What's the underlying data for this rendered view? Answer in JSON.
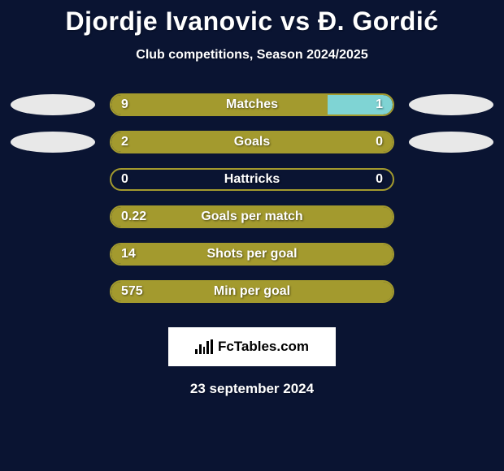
{
  "background_color": "#0a1432",
  "title": "Djordje Ivanovic vs Đ. Gordić",
  "subtitle": "Club competitions, Season 2024/2025",
  "title_color": "#ffffff",
  "subtitle_color": "#ffffff",
  "bar_track_width": 350,
  "bar_track_height": 28,
  "ellipse_left_color": "#e8e8e8",
  "ellipse_right_color": "#e8e8e8",
  "stats": [
    {
      "label": "Matches",
      "left_value": "9",
      "right_value": "1",
      "left_fill_pct": 77,
      "right_fill_pct": 23,
      "left_fill_color": "#a39a2e",
      "right_fill_color": "#7fd4d4",
      "border_color": "#a39a2e",
      "show_left_ellipse": true,
      "show_right_ellipse": true
    },
    {
      "label": "Goals",
      "left_value": "2",
      "right_value": "0",
      "left_fill_pct": 100,
      "right_fill_pct": 0,
      "left_fill_color": "#a39a2e",
      "right_fill_color": "#7fd4d4",
      "border_color": "#a39a2e",
      "show_left_ellipse": true,
      "show_right_ellipse": true
    },
    {
      "label": "Hattricks",
      "left_value": "0",
      "right_value": "0",
      "left_fill_pct": 0,
      "right_fill_pct": 0,
      "left_fill_color": "#a39a2e",
      "right_fill_color": "#7fd4d4",
      "border_color": "#a39a2e",
      "show_left_ellipse": false,
      "show_right_ellipse": false
    },
    {
      "label": "Goals per match",
      "left_value": "0.22",
      "right_value": "",
      "left_fill_pct": 100,
      "right_fill_pct": 0,
      "left_fill_color": "#a39a2e",
      "right_fill_color": "#7fd4d4",
      "border_color": "#a39a2e",
      "show_left_ellipse": false,
      "show_right_ellipse": false
    },
    {
      "label": "Shots per goal",
      "left_value": "14",
      "right_value": "",
      "left_fill_pct": 100,
      "right_fill_pct": 0,
      "left_fill_color": "#a39a2e",
      "right_fill_color": "#7fd4d4",
      "border_color": "#a39a2e",
      "show_left_ellipse": false,
      "show_right_ellipse": false
    },
    {
      "label": "Min per goal",
      "left_value": "575",
      "right_value": "",
      "left_fill_pct": 100,
      "right_fill_pct": 0,
      "left_fill_color": "#a39a2e",
      "right_fill_color": "#7fd4d4",
      "border_color": "#a39a2e",
      "show_left_ellipse": false,
      "show_right_ellipse": false
    }
  ],
  "brand": {
    "text": "FcTables.com",
    "bg": "#ffffff",
    "text_color": "#000000"
  },
  "date_text": "23 september 2024"
}
